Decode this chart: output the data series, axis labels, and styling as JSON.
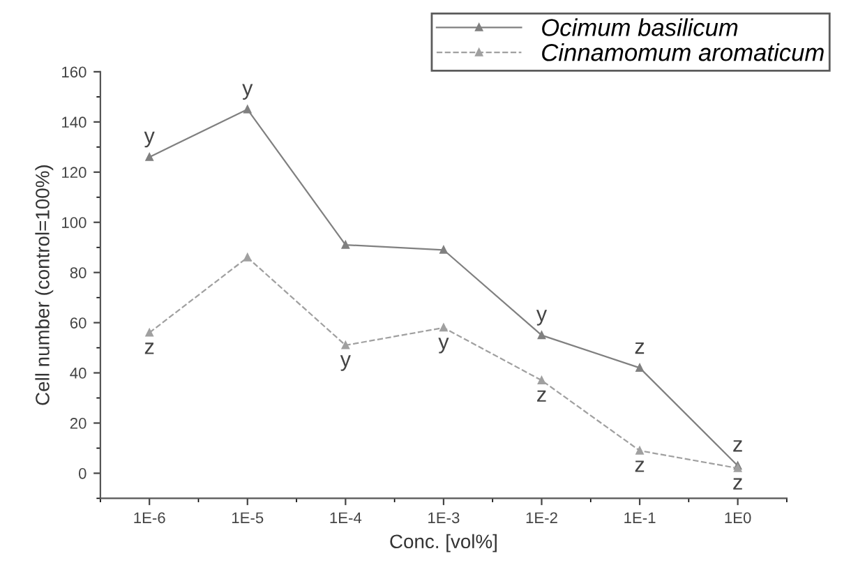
{
  "chart_data": {
    "type": "line",
    "xlabel": "Conc. [vol%]",
    "ylabel": "Cell number (control=100%)",
    "categories": [
      "1E-6",
      "1E-5",
      "1E-4",
      "1E-3",
      "1E-2",
      "1E-1",
      "1E0"
    ],
    "series": [
      {
        "name": "Ocimum basilicum",
        "color": "#808080",
        "line_style": "solid",
        "values": [
          126,
          145,
          91,
          89,
          55,
          42,
          3
        ]
      },
      {
        "name": "Cinnamomum aromaticum",
        "color": "#a0a0a0",
        "line_style": "dashed",
        "values": [
          56,
          86,
          51,
          58,
          37,
          9,
          2
        ]
      }
    ],
    "marker": "triangle",
    "ylim": [
      -10,
      160
    ],
    "yticks": [
      0,
      20,
      40,
      60,
      80,
      100,
      120,
      140,
      160
    ],
    "grid": false,
    "legend": "top right",
    "annotations": [
      {
        "text": "y",
        "x": "1E-6",
        "y": 126
      },
      {
        "text": "z",
        "x": "1E-6",
        "y": 56
      },
      {
        "text": "y",
        "x": "1E-5",
        "y": 145
      },
      {
        "text": "y",
        "x": "1E-4",
        "y": 51
      },
      {
        "text": "y",
        "x": "1E-3",
        "y": 58
      },
      {
        "text": "y",
        "x": "1E-2",
        "y": 55
      },
      {
        "text": "z",
        "x": "1E-2",
        "y": 37
      },
      {
        "text": "z",
        "x": "1E-1",
        "y": 42
      },
      {
        "text": "z",
        "x": "1E-1",
        "y": 9
      },
      {
        "text": "z",
        "x": "1E0",
        "y": 3
      },
      {
        "text": "z",
        "x": "1E0",
        "y": 2
      }
    ]
  }
}
